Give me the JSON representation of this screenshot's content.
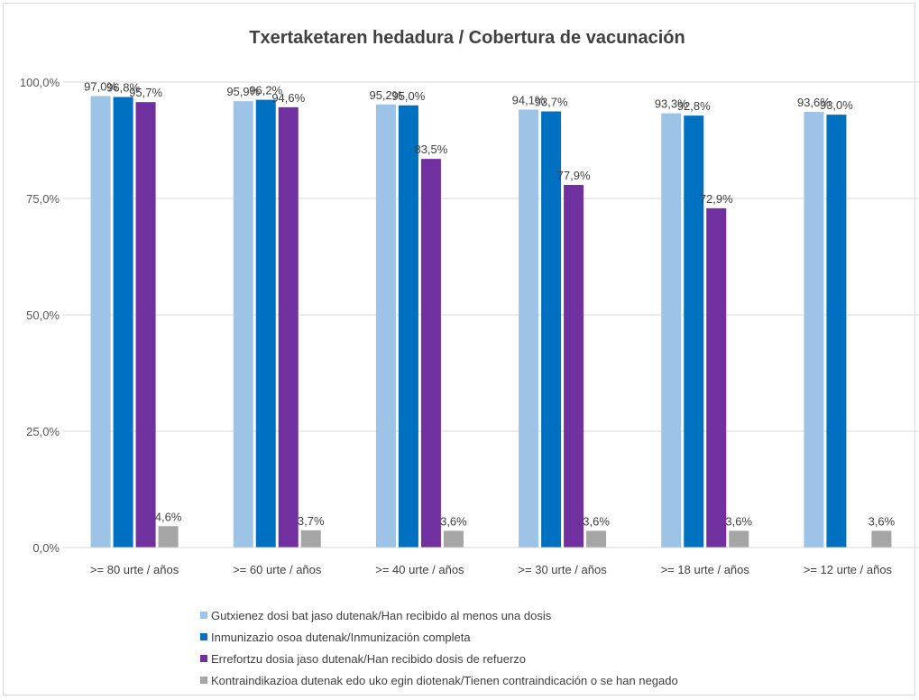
{
  "chart_data": {
    "type": "bar",
    "title": "Txertaketaren hedadura / Cobertura de vacunación",
    "categories": [
      ">= 80 urte / años",
      ">= 60 urte / años",
      ">= 40 urte / años",
      ">= 30 urte / años",
      ">= 18 urte / años",
      ">= 12 urte / años"
    ],
    "series": [
      {
        "name": "Gutxienez dosi bat jaso dutenak/Han recibido al menos una dosis",
        "color": "#9dc3e6",
        "values": [
          97.0,
          95.9,
          95.2,
          94.1,
          93.3,
          93.6
        ],
        "labels": [
          "97,0%",
          "95,9%",
          "95,2%",
          "94,1%",
          "93,3%",
          "93,6%"
        ]
      },
      {
        "name": "Inmunizazio osoa dutenak/Inmunización completa",
        "color": "#0070c0",
        "values": [
          96.8,
          96.2,
          95.0,
          93.7,
          92.8,
          93.0
        ],
        "labels": [
          "96,8%",
          "96,2%",
          "95,0%",
          "93,7%",
          "92,8%",
          "93,0%"
        ]
      },
      {
        "name": "Errefortzu dosia jaso dutenak/Han recibido dosis de refuerzo",
        "color": "#7030a0",
        "values": [
          95.7,
          94.6,
          83.5,
          77.9,
          72.9,
          null
        ],
        "labels": [
          "95,7%",
          "94,6%",
          "83,5%",
          "77,9%",
          "72,9%",
          null
        ]
      },
      {
        "name": "Kontraindikazioa dutenak edo uko egin diotenak/Tienen contraindicación o se han negado",
        "color": "#a5a5a5",
        "values": [
          4.6,
          3.7,
          3.6,
          3.6,
          3.6,
          3.6
        ],
        "labels": [
          "4,6%",
          "3,7%",
          "3,6%",
          "3,6%",
          "3,6%",
          "3,6%"
        ]
      }
    ],
    "ylim": [
      0,
      100
    ],
    "yticks": [
      0,
      25,
      50,
      75,
      100
    ],
    "ytick_labels": [
      "0,0%",
      "25,0%",
      "50,0%",
      "75,0%",
      "100,0%"
    ],
    "grid": true,
    "legend_position": "bottom"
  }
}
